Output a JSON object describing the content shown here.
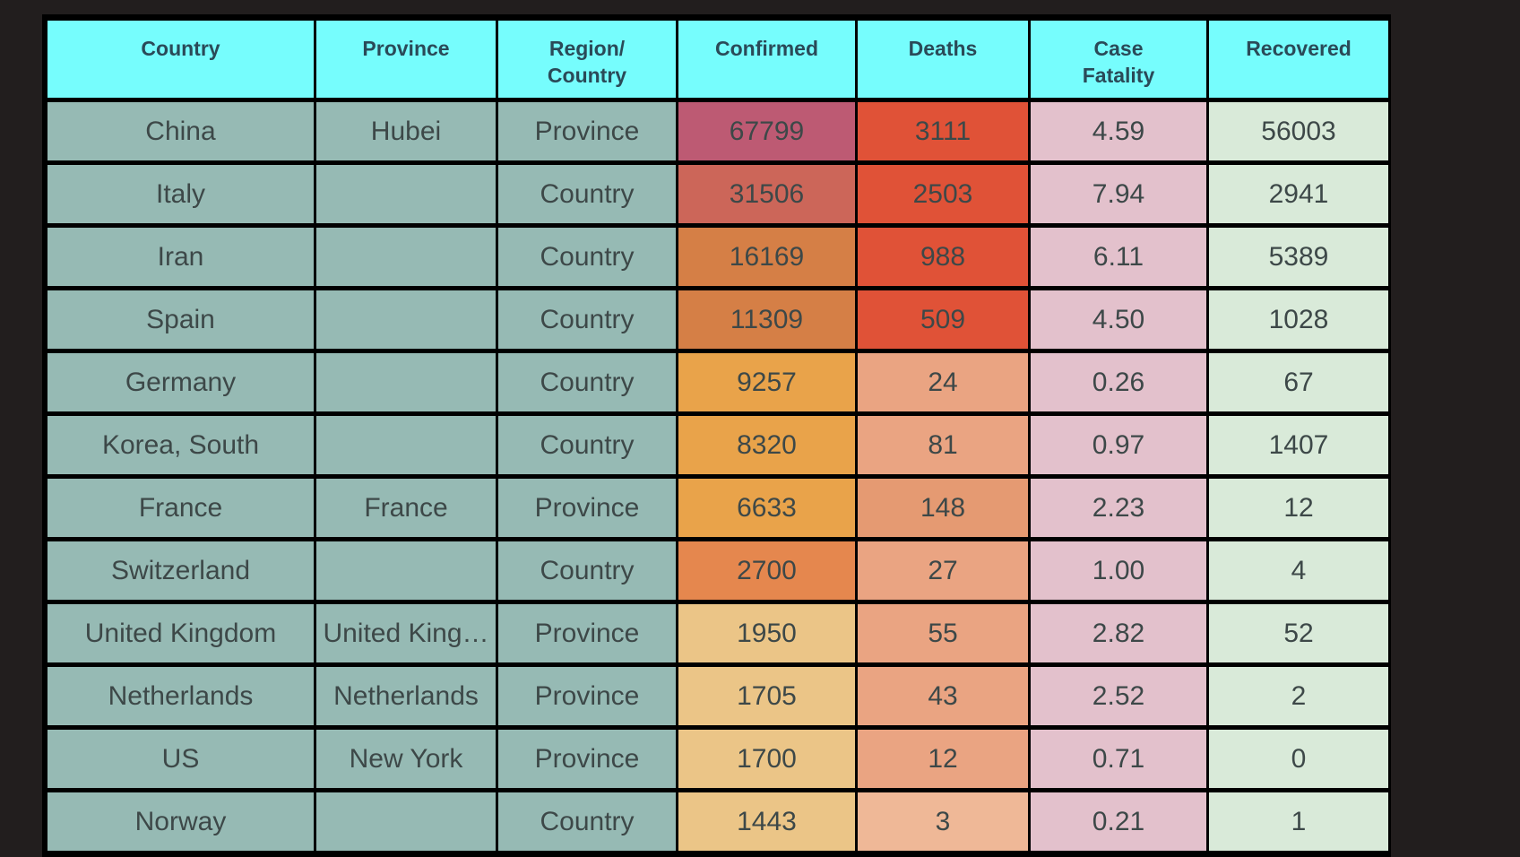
{
  "columns": [
    {
      "key": "country",
      "label": "Country"
    },
    {
      "key": "province",
      "label": "Province"
    },
    {
      "key": "region",
      "label": "Region/\nCountry"
    },
    {
      "key": "confirmed",
      "label": "Confirmed"
    },
    {
      "key": "deaths",
      "label": "Deaths"
    },
    {
      "key": "cf",
      "label": "Case\nFatality"
    },
    {
      "key": "recovered",
      "label": "Recovered"
    }
  ],
  "colors": {
    "header_bg": "#76fdfd",
    "id_cols_bg": "#96bab4",
    "case_fatality_bg": "#e3c1cc",
    "recovered_bg": "#d9ead9"
  },
  "rows": [
    {
      "country": "China",
      "province": "Hubei",
      "region": "Province",
      "confirmed": "67799",
      "deaths": "3111",
      "cf": "4.59",
      "recovered": "56003",
      "confirmed_color": "#bd5a73",
      "deaths_color": "#e05237"
    },
    {
      "country": "Italy",
      "province": "",
      "region": "Country",
      "confirmed": "31506",
      "deaths": "2503",
      "cf": "7.94",
      "recovered": "2941",
      "confirmed_color": "#cc6659",
      "deaths_color": "#e05237"
    },
    {
      "country": "Iran",
      "province": "",
      "region": "Country",
      "confirmed": "16169",
      "deaths": "988",
      "cf": "6.11",
      "recovered": "5389",
      "confirmed_color": "#d57f46",
      "deaths_color": "#e05237"
    },
    {
      "country": "Spain",
      "province": "",
      "region": "Country",
      "confirmed": "11309",
      "deaths": "509",
      "cf": "4.50",
      "recovered": "1028",
      "confirmed_color": "#d57f46",
      "deaths_color": "#e05237"
    },
    {
      "country": "Germany",
      "province": "",
      "region": "Country",
      "confirmed": "9257",
      "deaths": "24",
      "cf": "0.26",
      "recovered": "67",
      "confirmed_color": "#e9a34a",
      "deaths_color": "#eaa482"
    },
    {
      "country": "Korea, South",
      "province": "",
      "region": "Country",
      "confirmed": "8320",
      "deaths": "81",
      "cf": "0.97",
      "recovered": "1407",
      "confirmed_color": "#e9a34a",
      "deaths_color": "#eaa482"
    },
    {
      "country": "France",
      "province": "France",
      "region": "Province",
      "confirmed": "6633",
      "deaths": "148",
      "cf": "2.23",
      "recovered": "12",
      "confirmed_color": "#e9a34a",
      "deaths_color": "#e59a72"
    },
    {
      "country": "Switzerland",
      "province": "",
      "region": "Country",
      "confirmed": "2700",
      "deaths": "27",
      "cf": "1.00",
      "recovered": "4",
      "confirmed_color": "#e5874e",
      "deaths_color": "#eaa482"
    },
    {
      "country": "United Kingdom",
      "province": "United King…",
      "region": "Province",
      "confirmed": "1950",
      "deaths": "55",
      "cf": "2.82",
      "recovered": "52",
      "confirmed_color": "#ebc587",
      "deaths_color": "#eaa482"
    },
    {
      "country": "Netherlands",
      "province": "Netherlands",
      "region": "Province",
      "confirmed": "1705",
      "deaths": "43",
      "cf": "2.52",
      "recovered": "2",
      "confirmed_color": "#ebc587",
      "deaths_color": "#eaa482"
    },
    {
      "country": "US",
      "province": "New York",
      "region": "Province",
      "confirmed": "1700",
      "deaths": "12",
      "cf": "0.71",
      "recovered": "0",
      "confirmed_color": "#ebc587",
      "deaths_color": "#eaa482"
    },
    {
      "country": "Norway",
      "province": "",
      "region": "Country",
      "confirmed": "1443",
      "deaths": "3",
      "cf": "0.21",
      "recovered": "1",
      "confirmed_color": "#ebc587",
      "deaths_color": "#efb897"
    }
  ]
}
